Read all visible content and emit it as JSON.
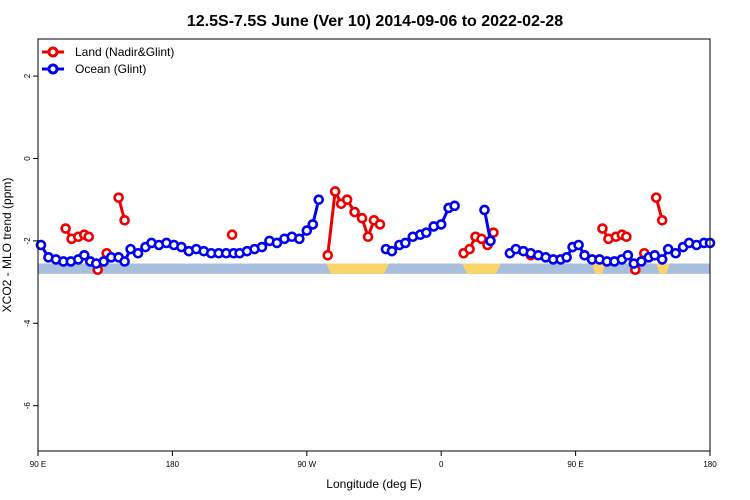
{
  "chart_data": {
    "type": "line",
    "title": "12.5S-7.5S June (Ver 10)   2014-09-06 to 2022-02-28",
    "xlabel": "Longitude (deg E)",
    "ylabel": "XCO2 - MLO trend (ppm)",
    "xlim": [
      90,
      540
    ],
    "ylim": [
      -7.1,
      2.9
    ],
    "x_ticks": [
      {
        "value": 90,
        "label": "90 E"
      },
      {
        "value": 180,
        "label": "180"
      },
      {
        "value": 270,
        "label": "90 W"
      },
      {
        "value": 360,
        "label": "0"
      },
      {
        "value": 450,
        "label": "90 E"
      },
      {
        "value": 540,
        "label": "180"
      }
    ],
    "y_ticks": [
      {
        "value": 2,
        "label": "2"
      },
      {
        "value": 0,
        "label": "0"
      },
      {
        "value": -2,
        "label": "-2"
      },
      {
        "value": -4,
        "label": "-4"
      },
      {
        "value": -6,
        "label": "-6"
      }
    ],
    "grid": false,
    "legend_position": "top-left",
    "band": {
      "y_top": -2.55,
      "y_bottom": -2.8,
      "ocean_color": "#a7bedc",
      "land_color": "#fbd46a"
    },
    "land_segments": [
      [
        283,
        325
      ],
      [
        374,
        400
      ],
      [
        461,
        470
      ],
      [
        504,
        513
      ]
    ],
    "series": [
      {
        "name": "Land (Nadir&Glint)",
        "color": "#ee0000",
        "segments": [
          [
            [
              108.5,
              -1.7
            ],
            [
              112.5,
              -1.95
            ],
            [
              117,
              -1.9
            ],
            [
              121,
              -1.85
            ],
            [
              124,
              -1.9
            ]
          ],
          [
            [
              130,
              -2.7
            ],
            [
              136,
              -2.3
            ]
          ],
          [
            [
              144,
              -0.95
            ],
            [
              148,
              -1.5
            ]
          ],
          [
            [
              220,
              -1.85
            ]
          ],
          [
            [
              284,
              -2.35
            ],
            [
              289,
              -0.8
            ],
            [
              293,
              -1.1
            ],
            [
              297,
              -1.0
            ],
            [
              302,
              -1.3
            ],
            [
              307,
              -1.45
            ],
            [
              311,
              -1.9
            ],
            [
              315,
              -1.5
            ],
            [
              319,
              -1.6
            ]
          ],
          [
            [
              375,
              -2.3
            ],
            [
              379,
              -2.2
            ],
            [
              383,
              -1.9
            ],
            [
              387,
              -1.95
            ],
            [
              391,
              -2.1
            ],
            [
              395,
              -1.8
            ]
          ],
          [
            [
              420,
              -2.35
            ]
          ],
          [
            [
              468,
              -1.7
            ],
            [
              472,
              -1.95
            ],
            [
              477,
              -1.9
            ],
            [
              481,
              -1.85
            ],
            [
              484,
              -1.9
            ]
          ],
          [
            [
              490,
              -2.7
            ],
            [
              496,
              -2.3
            ]
          ],
          [
            [
              504,
              -0.95
            ],
            [
              508,
              -1.5
            ]
          ]
        ]
      },
      {
        "name": "Ocean (Glint)",
        "color": "#0000ee",
        "segments": [
          [
            [
              92,
              -2.1
            ],
            [
              97,
              -2.4
            ],
            [
              102,
              -2.45
            ],
            [
              107,
              -2.5
            ],
            [
              112,
              -2.5
            ],
            [
              117,
              -2.45
            ],
            [
              121,
              -2.35
            ],
            [
              125,
              -2.5
            ],
            [
              129,
              -2.55
            ],
            [
              134,
              -2.5
            ],
            [
              139,
              -2.4
            ],
            [
              144,
              -2.4
            ],
            [
              148,
              -2.5
            ],
            [
              152,
              -2.2
            ],
            [
              157,
              -2.3
            ],
            [
              162,
              -2.15
            ],
            [
              166,
              -2.05
            ],
            [
              171,
              -2.1
            ],
            [
              176,
              -2.05
            ],
            [
              181,
              -2.1
            ],
            [
              186,
              -2.15
            ],
            [
              191,
              -2.25
            ],
            [
              196,
              -2.2
            ],
            [
              201,
              -2.25
            ],
            [
              206,
              -2.3
            ],
            [
              211,
              -2.3
            ],
            [
              216,
              -2.3
            ],
            [
              221,
              -2.3
            ],
            [
              225,
              -2.3
            ],
            [
              230,
              -2.25
            ],
            [
              235,
              -2.2
            ],
            [
              240,
              -2.15
            ],
            [
              245,
              -2.0
            ],
            [
              250,
              -2.05
            ],
            [
              255,
              -1.95
            ],
            [
              260,
              -1.9
            ],
            [
              265,
              -1.95
            ],
            [
              270,
              -1.75
            ],
            [
              274,
              -1.6
            ],
            [
              278,
              -1.0
            ]
          ],
          [
            [
              323,
              -2.2
            ],
            [
              327,
              -2.25
            ],
            [
              332,
              -2.1
            ],
            [
              336,
              -2.05
            ],
            [
              341,
              -1.9
            ],
            [
              346,
              -1.85
            ],
            [
              350,
              -1.8
            ],
            [
              355,
              -1.65
            ],
            [
              360,
              -1.6
            ],
            [
              365,
              -1.2
            ],
            [
              369,
              -1.15
            ]
          ],
          [
            [
              389,
              -1.25
            ],
            [
              393,
              -2.0
            ]
          ],
          [
            [
              406,
              -2.3
            ],
            [
              410,
              -2.2
            ],
            [
              415,
              -2.25
            ],
            [
              420,
              -2.3
            ],
            [
              425,
              -2.35
            ],
            [
              430,
              -2.4
            ],
            [
              435,
              -2.45
            ],
            [
              440,
              -2.45
            ],
            [
              444,
              -2.4
            ],
            [
              448,
              -2.15
            ],
            [
              452,
              -2.1
            ],
            [
              456,
              -2.35
            ],
            [
              461,
              -2.45
            ],
            [
              466,
              -2.45
            ],
            [
              471,
              -2.5
            ],
            [
              476,
              -2.5
            ],
            [
              481,
              -2.45
            ],
            [
              485,
              -2.35
            ],
            [
              489,
              -2.55
            ],
            [
              494,
              -2.5
            ],
            [
              499,
              -2.4
            ],
            [
              503,
              -2.35
            ],
            [
              508,
              -2.45
            ],
            [
              512,
              -2.2
            ],
            [
              517,
              -2.3
            ],
            [
              522,
              -2.15
            ],
            [
              526,
              -2.05
            ],
            [
              531,
              -2.1
            ],
            [
              536,
              -2.05
            ],
            [
              540,
              -2.05
            ]
          ]
        ]
      }
    ]
  }
}
